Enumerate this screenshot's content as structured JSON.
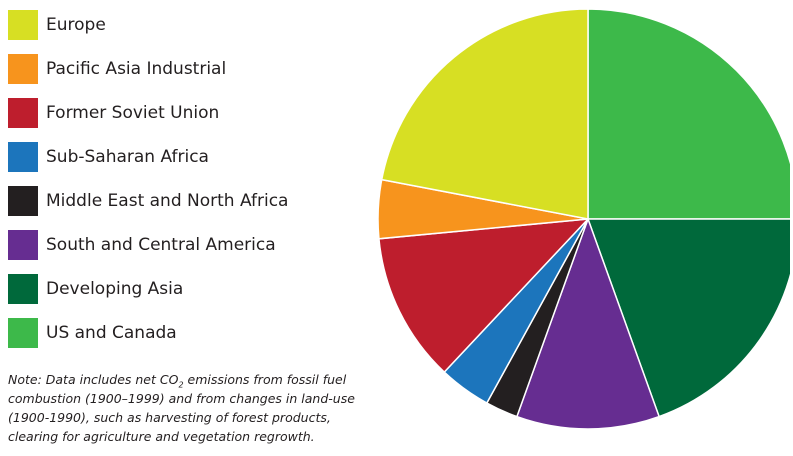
{
  "chart_data": {
    "type": "pie",
    "title": "",
    "slices": [
      {
        "label": "US and Canada",
        "value": 25.0,
        "color": "#3db94a"
      },
      {
        "label": "Developing Asia",
        "value": 19.5,
        "color": "#00693b"
      },
      {
        "label": "South and Central America",
        "value": 11.0,
        "color": "#662d91"
      },
      {
        "label": "Middle East and North Africa",
        "value": 2.5,
        "color": "#231f20"
      },
      {
        "label": "Sub-Saharan Africa",
        "value": 4.0,
        "color": "#1c75bc"
      },
      {
        "label": "Former Soviet Union",
        "value": 11.5,
        "color": "#be1e2d"
      },
      {
        "label": "Pacific Asia Industrial",
        "value": 4.5,
        "color": "#f7941d"
      },
      {
        "label": "Europe",
        "value": 22.0,
        "color": "#d7df23"
      }
    ],
    "legend_order": [
      "Europe",
      "Pacific Asia Industrial",
      "Former Soviet Union",
      "Sub-Saharan Africa",
      "Middle East and North Africa",
      "South and Central America",
      "Developing Asia",
      "US and Canada"
    ],
    "legend_placement": "left"
  },
  "note": {
    "prefix": "Note: Data includes net CO",
    "subscript": "2",
    "suffix": " emissions from fossil fuel combustion (1900–1999) and from changes in land-use (1900-1990), such as harvesting of forest products, clearing for agriculture and vegetation regrowth."
  }
}
